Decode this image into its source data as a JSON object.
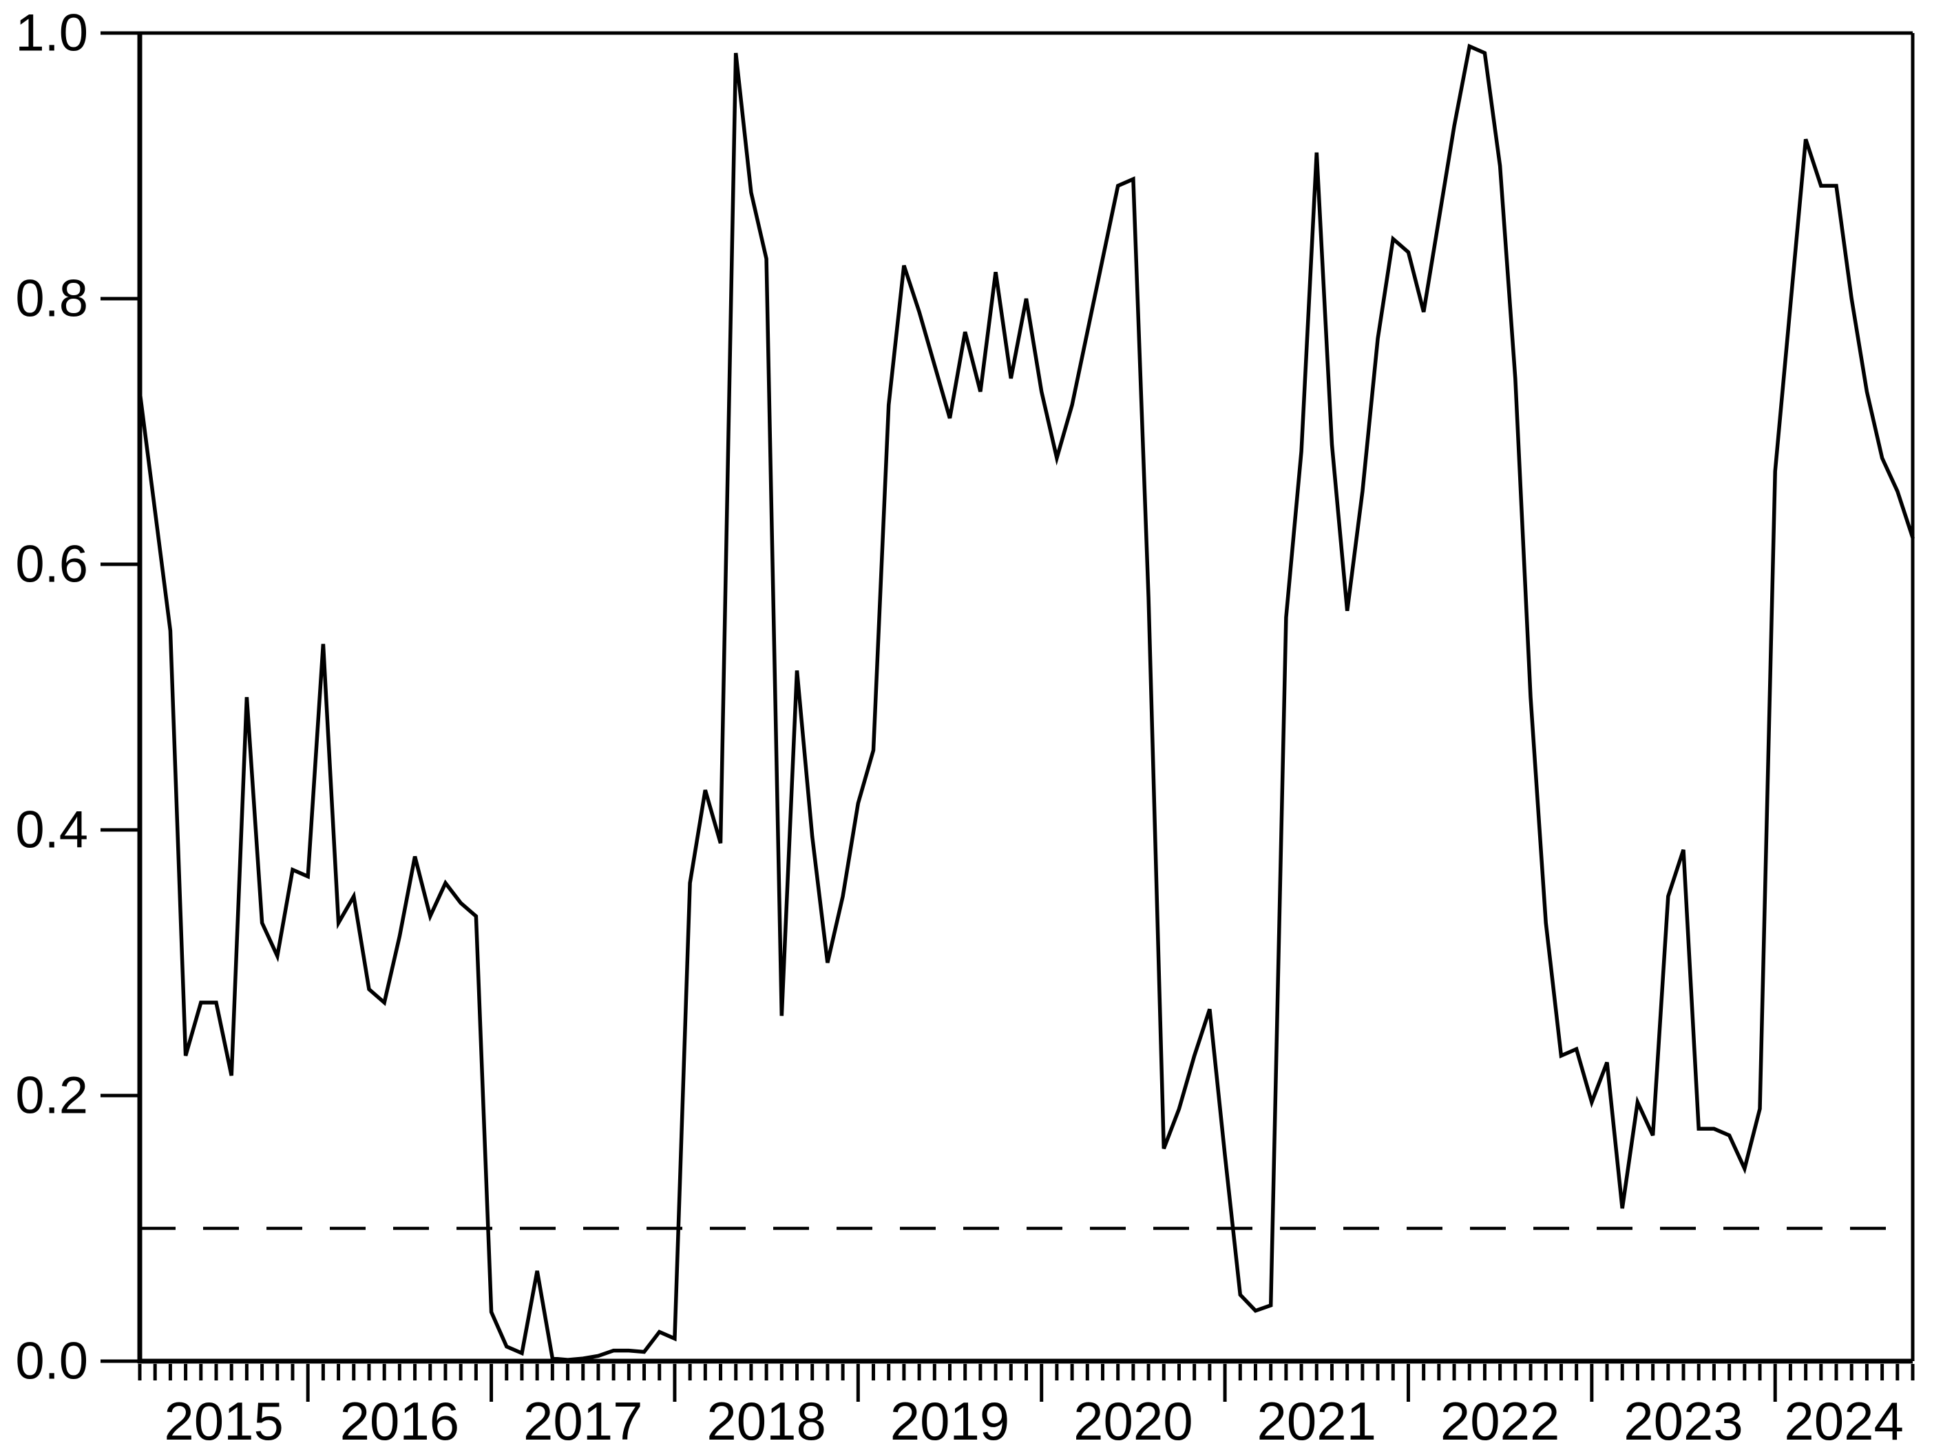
{
  "chart_data": {
    "type": "line",
    "title": "",
    "xlabel": "",
    "ylabel": "",
    "frequency": "monthly",
    "x_start": "2015-02",
    "x_end": "2024-10",
    "ylim": [
      0.0,
      1.0
    ],
    "grid": false,
    "legend": null,
    "line_color": "#000000",
    "background_color": "#ffffff",
    "axis_color": "#000000",
    "threshold_line": {
      "value": 0.1,
      "style": "dashed",
      "color": "#000000"
    },
    "y_ticks": [
      0.0,
      0.2,
      0.4,
      0.6,
      0.8,
      1.0
    ],
    "y_tick_labels": [
      "0.0",
      "0.2",
      "0.4",
      "0.6",
      "0.8",
      "1.0"
    ],
    "x_year_labels": [
      "2015",
      "2016",
      "2017",
      "2018",
      "2019",
      "2020",
      "2021",
      "2022",
      "2023",
      "2024"
    ],
    "series": [
      {
        "values": [
          0.73,
          0.64,
          0.55,
          0.23,
          0.27,
          0.27,
          0.215,
          0.5,
          0.33,
          0.305,
          0.37,
          0.365,
          0.54,
          0.33,
          0.35,
          0.28,
          0.27,
          0.32,
          0.38,
          0.335,
          0.36,
          0.345,
          0.335,
          0.037,
          0.011,
          0.006,
          0.068,
          0.002,
          0.001,
          0.002,
          0.004,
          0.008,
          0.008,
          0.007,
          0.022,
          0.017,
          0.36,
          0.43,
          0.39,
          0.985,
          0.88,
          0.83,
          0.26,
          0.52,
          0.395,
          0.3,
          0.35,
          0.42,
          0.46,
          0.72,
          0.825,
          0.79,
          0.75,
          0.71,
          0.775,
          0.73,
          0.82,
          0.74,
          0.8,
          0.73,
          0.68,
          0.72,
          0.775,
          0.83,
          0.885,
          0.89,
          0.575,
          0.16,
          0.19,
          0.23,
          0.265,
          0.155,
          0.05,
          0.038,
          0.042,
          0.56,
          0.685,
          0.91,
          0.69,
          0.565,
          0.655,
          0.77,
          0.845,
          0.835,
          0.79,
          0.86,
          0.93,
          0.99,
          0.985,
          0.9,
          0.74,
          0.5,
          0.33,
          0.23,
          0.235,
          0.195,
          0.225,
          0.115,
          0.195,
          0.17,
          0.35,
          0.385,
          0.175,
          0.175,
          0.17,
          0.145,
          0.19,
          0.67,
          0.795,
          0.92,
          0.885,
          0.885,
          0.8,
          0.73,
          0.68,
          0.655,
          0.62
        ]
      }
    ]
  }
}
